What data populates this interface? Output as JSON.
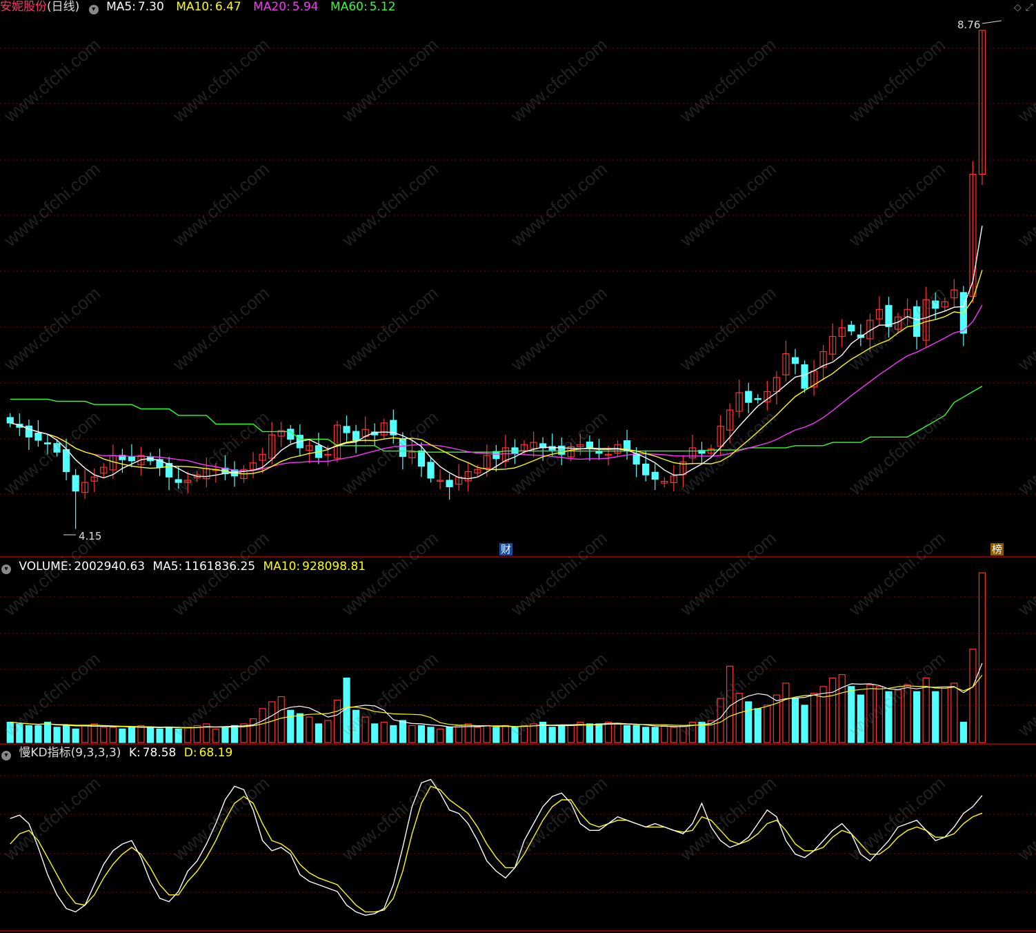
{
  "main": {
    "stock_name": "安妮股份",
    "period": "(日线)",
    "ma": [
      {
        "label": "MA5:",
        "value": "7.30",
        "color": "#ffffff"
      },
      {
        "label": "MA10:",
        "value": "6.47",
        "color": "#ffff00"
      },
      {
        "label": "MA20:",
        "value": "5.94",
        "color": "#ff33ff"
      },
      {
        "label": "MA60:",
        "value": "5.12",
        "color": "#33ff33"
      }
    ],
    "high_label": "8.76",
    "low_label": "4.15",
    "cai_tag": "财",
    "bang_tag": "榜"
  },
  "volume": {
    "label": "VOLUME:",
    "value": "2002940.63",
    "ma5_label": "MA5:",
    "ma5_value": "1161836.25",
    "ma10_label": "MA10:",
    "ma10_value": "928098.81"
  },
  "kd": {
    "name": "慢KD指标",
    "params": "(9,3,3,3)",
    "k_label": "K:",
    "k_value": "78.58",
    "d_label": "D:",
    "d_value": "68.19"
  },
  "watermark": "www.cfchi.com",
  "colors": {
    "up": "#ff3333",
    "down": "#54ffff",
    "grid": "#8b0000",
    "divider": "#b00000"
  },
  "chart_data": [
    {
      "type": "candlestick",
      "title": "安妮股份 (日线)",
      "ylim": [
        4.0,
        8.9
      ],
      "x_days": 110,
      "close": [
        5.13,
        5.09,
        5.0,
        4.97,
        4.94,
        4.86,
        4.68,
        4.5,
        4.58,
        4.63,
        4.72,
        4.83,
        4.79,
        4.78,
        4.83,
        4.78,
        4.72,
        4.63,
        4.58,
        4.6,
        4.65,
        4.71,
        4.7,
        4.66,
        4.64,
        4.7,
        4.76,
        4.84,
        5.02,
        5.06,
        4.98,
        4.9,
        4.92,
        4.81,
        4.84,
        5.11,
        5.04,
        4.97,
        5.07,
        5.02,
        5.13,
        5.02,
        4.82,
        4.86,
        4.73,
        4.62,
        4.6,
        4.54,
        4.63,
        4.68,
        4.7,
        4.83,
        4.8,
        4.9,
        4.85,
        4.93,
        4.95,
        4.9,
        4.88,
        4.84,
        4.91,
        4.93,
        4.9,
        4.85,
        4.84,
        4.93,
        4.87,
        4.75,
        4.65,
        4.61,
        4.59,
        4.64,
        4.77,
        4.9,
        4.85,
        4.89,
        5.1,
        5.25,
        5.41,
        5.32,
        5.35,
        5.42,
        5.55,
        5.77,
        5.68,
        5.45,
        5.61,
        5.79,
        5.93,
        6.01,
        5.98,
        5.92,
        6.08,
        6.18,
        6.02,
        6.11,
        6.18,
        5.93,
        6.27,
        6.19,
        6.25,
        6.36,
        5.96,
        7.43,
        8.76
      ],
      "series": [
        {
          "name": "MA5",
          "last": 7.3
        },
        {
          "name": "MA10",
          "last": 6.47
        },
        {
          "name": "MA20",
          "last": 5.94
        },
        {
          "name": "MA60",
          "last": 5.12
        }
      ]
    },
    {
      "type": "bar",
      "title": "VOLUME",
      "values_rel": [
        0.12,
        0.11,
        0.1,
        0.1,
        0.12,
        0.09,
        0.1,
        0.08,
        0.1,
        0.11,
        0.09,
        0.09,
        0.08,
        0.09,
        0.1,
        0.09,
        0.08,
        0.09,
        0.08,
        0.09,
        0.1,
        0.11,
        0.08,
        0.09,
        0.1,
        0.11,
        0.14,
        0.2,
        0.24,
        0.27,
        0.19,
        0.17,
        0.15,
        0.11,
        0.13,
        0.25,
        0.38,
        0.19,
        0.15,
        0.11,
        0.12,
        0.1,
        0.13,
        0.1,
        0.1,
        0.09,
        0.08,
        0.09,
        0.1,
        0.11,
        0.09,
        0.1,
        0.09,
        0.1,
        0.09,
        0.1,
        0.11,
        0.12,
        0.09,
        0.1,
        0.1,
        0.12,
        0.11,
        0.11,
        0.12,
        0.11,
        0.1,
        0.1,
        0.09,
        0.09,
        0.1,
        0.09,
        0.1,
        0.12,
        0.12,
        0.13,
        0.26,
        0.45,
        0.29,
        0.24,
        0.2,
        0.22,
        0.28,
        0.35,
        0.26,
        0.22,
        0.29,
        0.33,
        0.38,
        0.4,
        0.33,
        0.28,
        0.34,
        0.33,
        0.3,
        0.31,
        0.34,
        0.3,
        0.38,
        0.3,
        0.32,
        0.35,
        0.12,
        0.55,
        1.0
      ]
    },
    {
      "type": "line",
      "title": "慢KD指标(9,3,3,3)",
      "ylim": [
        0,
        100
      ],
      "series": [
        {
          "name": "K",
          "values": [
            65,
            67,
            62,
            48,
            32,
            20,
            12,
            10,
            14,
            26,
            38,
            46,
            50,
            52,
            42,
            28,
            18,
            16,
            22,
            34,
            40,
            50,
            62,
            76,
            84,
            82,
            70,
            52,
            46,
            48,
            44,
            32,
            28,
            26,
            24,
            22,
            14,
            10,
            8,
            9,
            12,
            26,
            48,
            72,
            86,
            88,
            80,
            70,
            68,
            62,
            52,
            40,
            34,
            30,
            36,
            52,
            62,
            72,
            78,
            80,
            74,
            62,
            58,
            58,
            62,
            66,
            64,
            62,
            60,
            62,
            60,
            58,
            56,
            62,
            74,
            60,
            52,
            48,
            50,
            54,
            62,
            70,
            66,
            52,
            44,
            42,
            46,
            52,
            58,
            62,
            56,
            44,
            40,
            46,
            52,
            60,
            62,
            64,
            58,
            52,
            54,
            60,
            68,
            72,
            78.58
          ]
        },
        {
          "name": "D",
          "values": [
            50,
            56,
            58,
            52,
            42,
            32,
            22,
            15,
            14,
            20,
            30,
            38,
            44,
            48,
            44,
            36,
            26,
            20,
            20,
            28,
            34,
            42,
            52,
            64,
            74,
            78,
            74,
            62,
            52,
            50,
            46,
            38,
            33,
            30,
            28,
            26,
            20,
            14,
            10,
            10,
            11,
            18,
            34,
            56,
            74,
            84,
            82,
            76,
            72,
            68,
            60,
            50,
            42,
            36,
            36,
            44,
            54,
            64,
            72,
            76,
            76,
            68,
            62,
            60,
            62,
            64,
            64,
            62,
            60,
            60,
            60,
            58,
            57,
            58,
            66,
            64,
            58,
            52,
            50,
            52,
            56,
            62,
            64,
            58,
            50,
            46,
            46,
            48,
            54,
            58,
            56,
            50,
            44,
            44,
            48,
            54,
            58,
            60,
            58,
            54,
            54,
            56,
            62,
            66,
            68.19
          ]
        }
      ]
    }
  ]
}
